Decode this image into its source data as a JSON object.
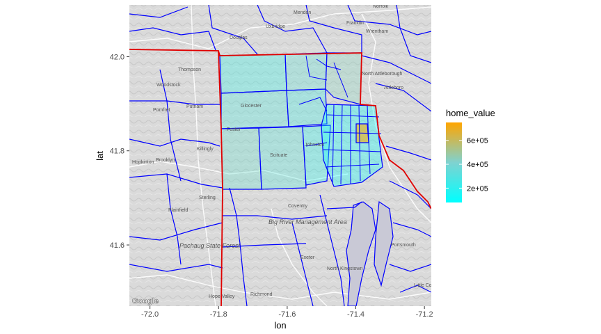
{
  "chart_data": {
    "type": "map",
    "xlabel": "lon",
    "ylabel": "lat",
    "xlim": [
      -72.06,
      -71.18
    ],
    "ylim": [
      41.47,
      42.11
    ],
    "x_ticks": [
      {
        "value": -72.0,
        "label": "-72.0"
      },
      {
        "value": -71.8,
        "label": "-71.8"
      },
      {
        "value": -71.6,
        "label": "-71.6"
      },
      {
        "value": -71.4,
        "label": "-71.4"
      },
      {
        "value": -71.2,
        "label": "-71.2"
      }
    ],
    "y_ticks": [
      {
        "value": 41.6,
        "label": "41.6"
      },
      {
        "value": 41.8,
        "label": "41.8"
      },
      {
        "value": 42.0,
        "label": "42.0"
      }
    ],
    "legend": {
      "title": "home_value",
      "position": "right",
      "min": 80000,
      "max": 750000,
      "low_color": "#00ffff",
      "high_color": "#ffa500",
      "breaks": [
        {
          "value": 200000,
          "label": "2e+05"
        },
        {
          "value": 400000,
          "label": "4e+05"
        },
        {
          "value": 600000,
          "label": "6e+05"
        }
      ]
    },
    "colors": {
      "tract_border": "#0000ff",
      "state_border": "#e00000",
      "fill_opacity": 0.35
    },
    "map_labels": {
      "places": [
        "Mendon",
        "Uxbridge",
        "Franklin",
        "Norfolk",
        "Wrentham",
        "Douglas",
        "Thompson",
        "Woodstock",
        "North Attleborough",
        "Attleboro",
        "Pomfret",
        "Putnam",
        "Killingly",
        "Brooklyn",
        "Sterling",
        "Plainfield",
        "Coventry",
        "Exeter",
        "North Kingstown",
        "Richmond",
        "Hope Valley",
        "Little Compton",
        "Portsmouth",
        "Foster",
        "Glocester",
        "Scituate",
        "Johnston",
        "Hopkinton"
      ],
      "areas": [
        "Pachaug State Forest",
        "Big River Management Area"
      ]
    },
    "attribution": "Google"
  }
}
